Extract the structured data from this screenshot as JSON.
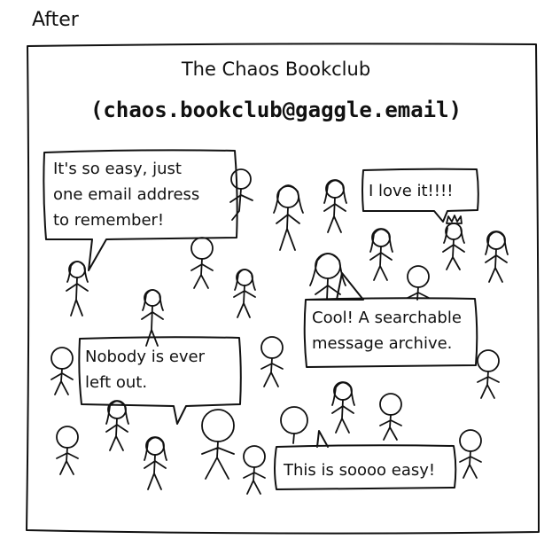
{
  "header": "After",
  "title": "The Chaos Bookclub",
  "email": "(chaos.bookclub@gaggle.email)",
  "bubbles": {
    "easy": [
      "It's so easy, just",
      "one email address",
      "to remember!"
    ],
    "love": [
      "I love it!!!!"
    ],
    "archive": [
      "Cool! A searchable",
      "message archive."
    ],
    "nobody": [
      "Nobody is ever",
      "left out."
    ],
    "soooo": [
      "This is soooo easy!"
    ]
  }
}
